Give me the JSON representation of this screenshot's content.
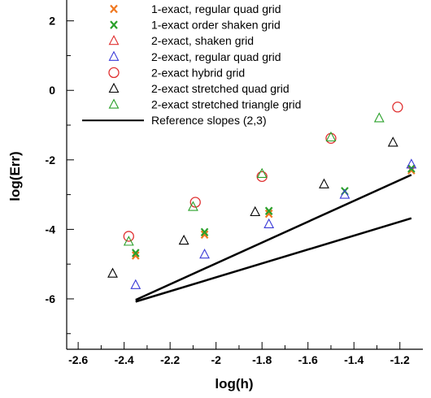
{
  "chart_data": {
    "type": "scatter",
    "title": "",
    "xlabel": "log(h)",
    "ylabel": "log(Err)",
    "xlim": [
      -2.65,
      -1.1
    ],
    "ylim": [
      -7.45,
      2.6
    ],
    "x_ticks": [
      -2.6,
      -2.4,
      -2.2,
      -2.0,
      -1.8,
      -1.6,
      -1.4,
      -1.2
    ],
    "x_tick_labels": [
      "-2.6",
      "-2.4",
      "-2.2",
      "-2",
      "-1.8",
      "-1.6",
      "-1.4",
      "-1.2"
    ],
    "y_ticks": [
      2,
      0,
      -2,
      -4,
      -6
    ],
    "y_tick_labels": [
      "2",
      "0",
      "-2",
      "-4",
      "-6"
    ],
    "grid": false,
    "legend_position": "top-left",
    "series": [
      {
        "name": "1-exact, regular quad grid",
        "marker": "x",
        "color": "#f07820",
        "points": [
          [
            -2.35,
            -4.75
          ],
          [
            -2.05,
            -4.15
          ],
          [
            -1.77,
            -3.55
          ],
          [
            -1.15,
            -2.3
          ]
        ]
      },
      {
        "name": "1-exact order shaken grid",
        "marker": "x",
        "color": "#2aa02a",
        "points": [
          [
            -2.35,
            -4.68
          ],
          [
            -2.05,
            -4.08
          ],
          [
            -1.77,
            -3.47
          ],
          [
            -1.44,
            -2.9
          ],
          [
            -1.15,
            -2.25
          ]
        ]
      },
      {
        "name": "2-exact, shaken grid",
        "marker": "triangle",
        "color": "#e03030",
        "points": []
      },
      {
        "name": "2-exact, regular quad grid",
        "marker": "triangle",
        "color": "#3a3ad8",
        "points": [
          [
            -2.35,
            -5.6
          ],
          [
            -2.05,
            -4.72
          ],
          [
            -1.77,
            -3.85
          ],
          [
            -1.44,
            -3.0
          ],
          [
            -1.15,
            -2.13
          ]
        ]
      },
      {
        "name": "2-exact hybrid grid",
        "marker": "circle",
        "color": "#e03030",
        "points": [
          [
            -2.38,
            -4.2
          ],
          [
            -2.09,
            -3.22
          ],
          [
            -1.8,
            -2.48
          ],
          [
            -1.5,
            -1.38
          ],
          [
            -1.21,
            -0.48
          ]
        ]
      },
      {
        "name": "2-exact stretched quad grid",
        "marker": "triangle",
        "color": "#000000",
        "points": [
          [
            -2.45,
            -5.27
          ],
          [
            -2.14,
            -4.32
          ],
          [
            -1.83,
            -3.5
          ],
          [
            -1.53,
            -2.7
          ],
          [
            -1.23,
            -1.5
          ]
        ]
      },
      {
        "name": "2-exact stretched triangle grid",
        "marker": "triangle",
        "color": "#2aa02a",
        "points": [
          [
            -2.38,
            -4.35
          ],
          [
            -2.1,
            -3.35
          ],
          [
            -1.8,
            -2.4
          ],
          [
            -1.5,
            -1.35
          ],
          [
            -1.29,
            -0.8
          ]
        ]
      }
    ],
    "reference": {
      "name": "Reference slopes (2,3)",
      "color": "#000000",
      "lines": [
        [
          [
            -2.35,
            -6.08
          ],
          [
            -1.15,
            -3.68
          ]
        ],
        [
          [
            -2.35,
            -6.03
          ],
          [
            -1.15,
            -2.43
          ]
        ]
      ]
    }
  }
}
